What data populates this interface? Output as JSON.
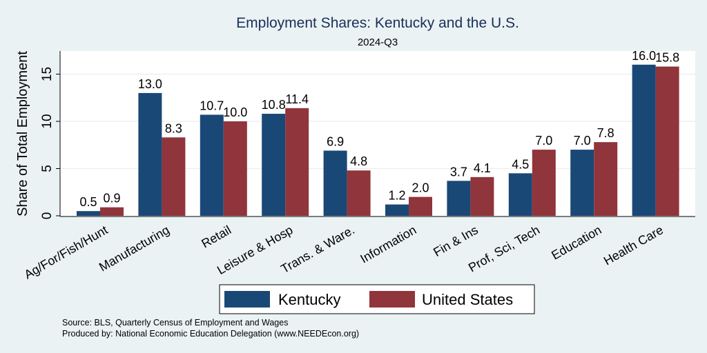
{
  "chart_data": {
    "type": "bar",
    "title": "Employment Shares: Kentucky and the U.S.",
    "subtitle": "2024-Q3",
    "xlabel": "",
    "ylabel": "Share of Total Employment",
    "ylim": [
      0,
      17.5
    ],
    "yticks": [
      0,
      5,
      10,
      15
    ],
    "grid": true,
    "legend_position": "bottom",
    "categories": [
      "Ag/For/Fish/Hunt",
      "Manufacturing",
      "Retail",
      "Leisure & Hosp",
      "Trans. & Ware.",
      "Information",
      "Fin & Ins",
      "Prof, Sci, Tech",
      "Education",
      "Health Care"
    ],
    "series": [
      {
        "name": "Kentucky",
        "color": "#1a4876",
        "values": [
          0.5,
          13.0,
          10.7,
          10.8,
          6.9,
          1.2,
          3.7,
          4.5,
          7.0,
          16.0
        ]
      },
      {
        "name": "United States",
        "color": "#90353b",
        "values": [
          0.9,
          8.3,
          10.0,
          11.4,
          4.8,
          2.0,
          4.1,
          7.0,
          7.8,
          15.8
        ]
      }
    ],
    "notes": [
      "Source: BLS, Quarterly Census of Employment and Wages",
      "Produced by: National Economic Education Delegation (www.NEEDEcon.org)"
    ]
  }
}
